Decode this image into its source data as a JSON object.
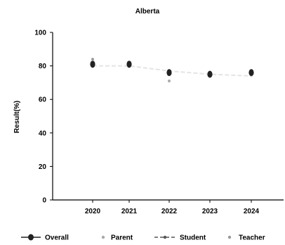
{
  "chart_data": {
    "type": "line",
    "title": "Alberta",
    "xlabel": "",
    "ylabel": "Result(%)",
    "categories": [
      "2020",
      "2021",
      "2022",
      "2023",
      "2024"
    ],
    "ylim": [
      0,
      100
    ],
    "yticks": [
      0,
      20,
      40,
      60,
      80,
      100
    ],
    "grid": false,
    "legend_position": "bottom",
    "series": [
      {
        "name": "Overall",
        "values": [
          81,
          81,
          76,
          75,
          76
        ],
        "color": "#222222",
        "marker": "filled-circle",
        "line": "solid"
      },
      {
        "name": "Parent",
        "values": [
          81,
          81,
          71,
          76,
          76
        ],
        "color": "#aaaaaa",
        "marker": "small-dot",
        "line": "none"
      },
      {
        "name": "Student",
        "values": [
          80,
          80,
          77,
          75,
          74
        ],
        "color": "#e4e4e4",
        "marker": "small-dot",
        "line": "dashed"
      },
      {
        "name": "Teacher",
        "values": [
          84,
          82,
          76,
          74,
          77
        ],
        "color": "#9a9a9a",
        "marker": "small-dot",
        "line": "none"
      }
    ]
  }
}
